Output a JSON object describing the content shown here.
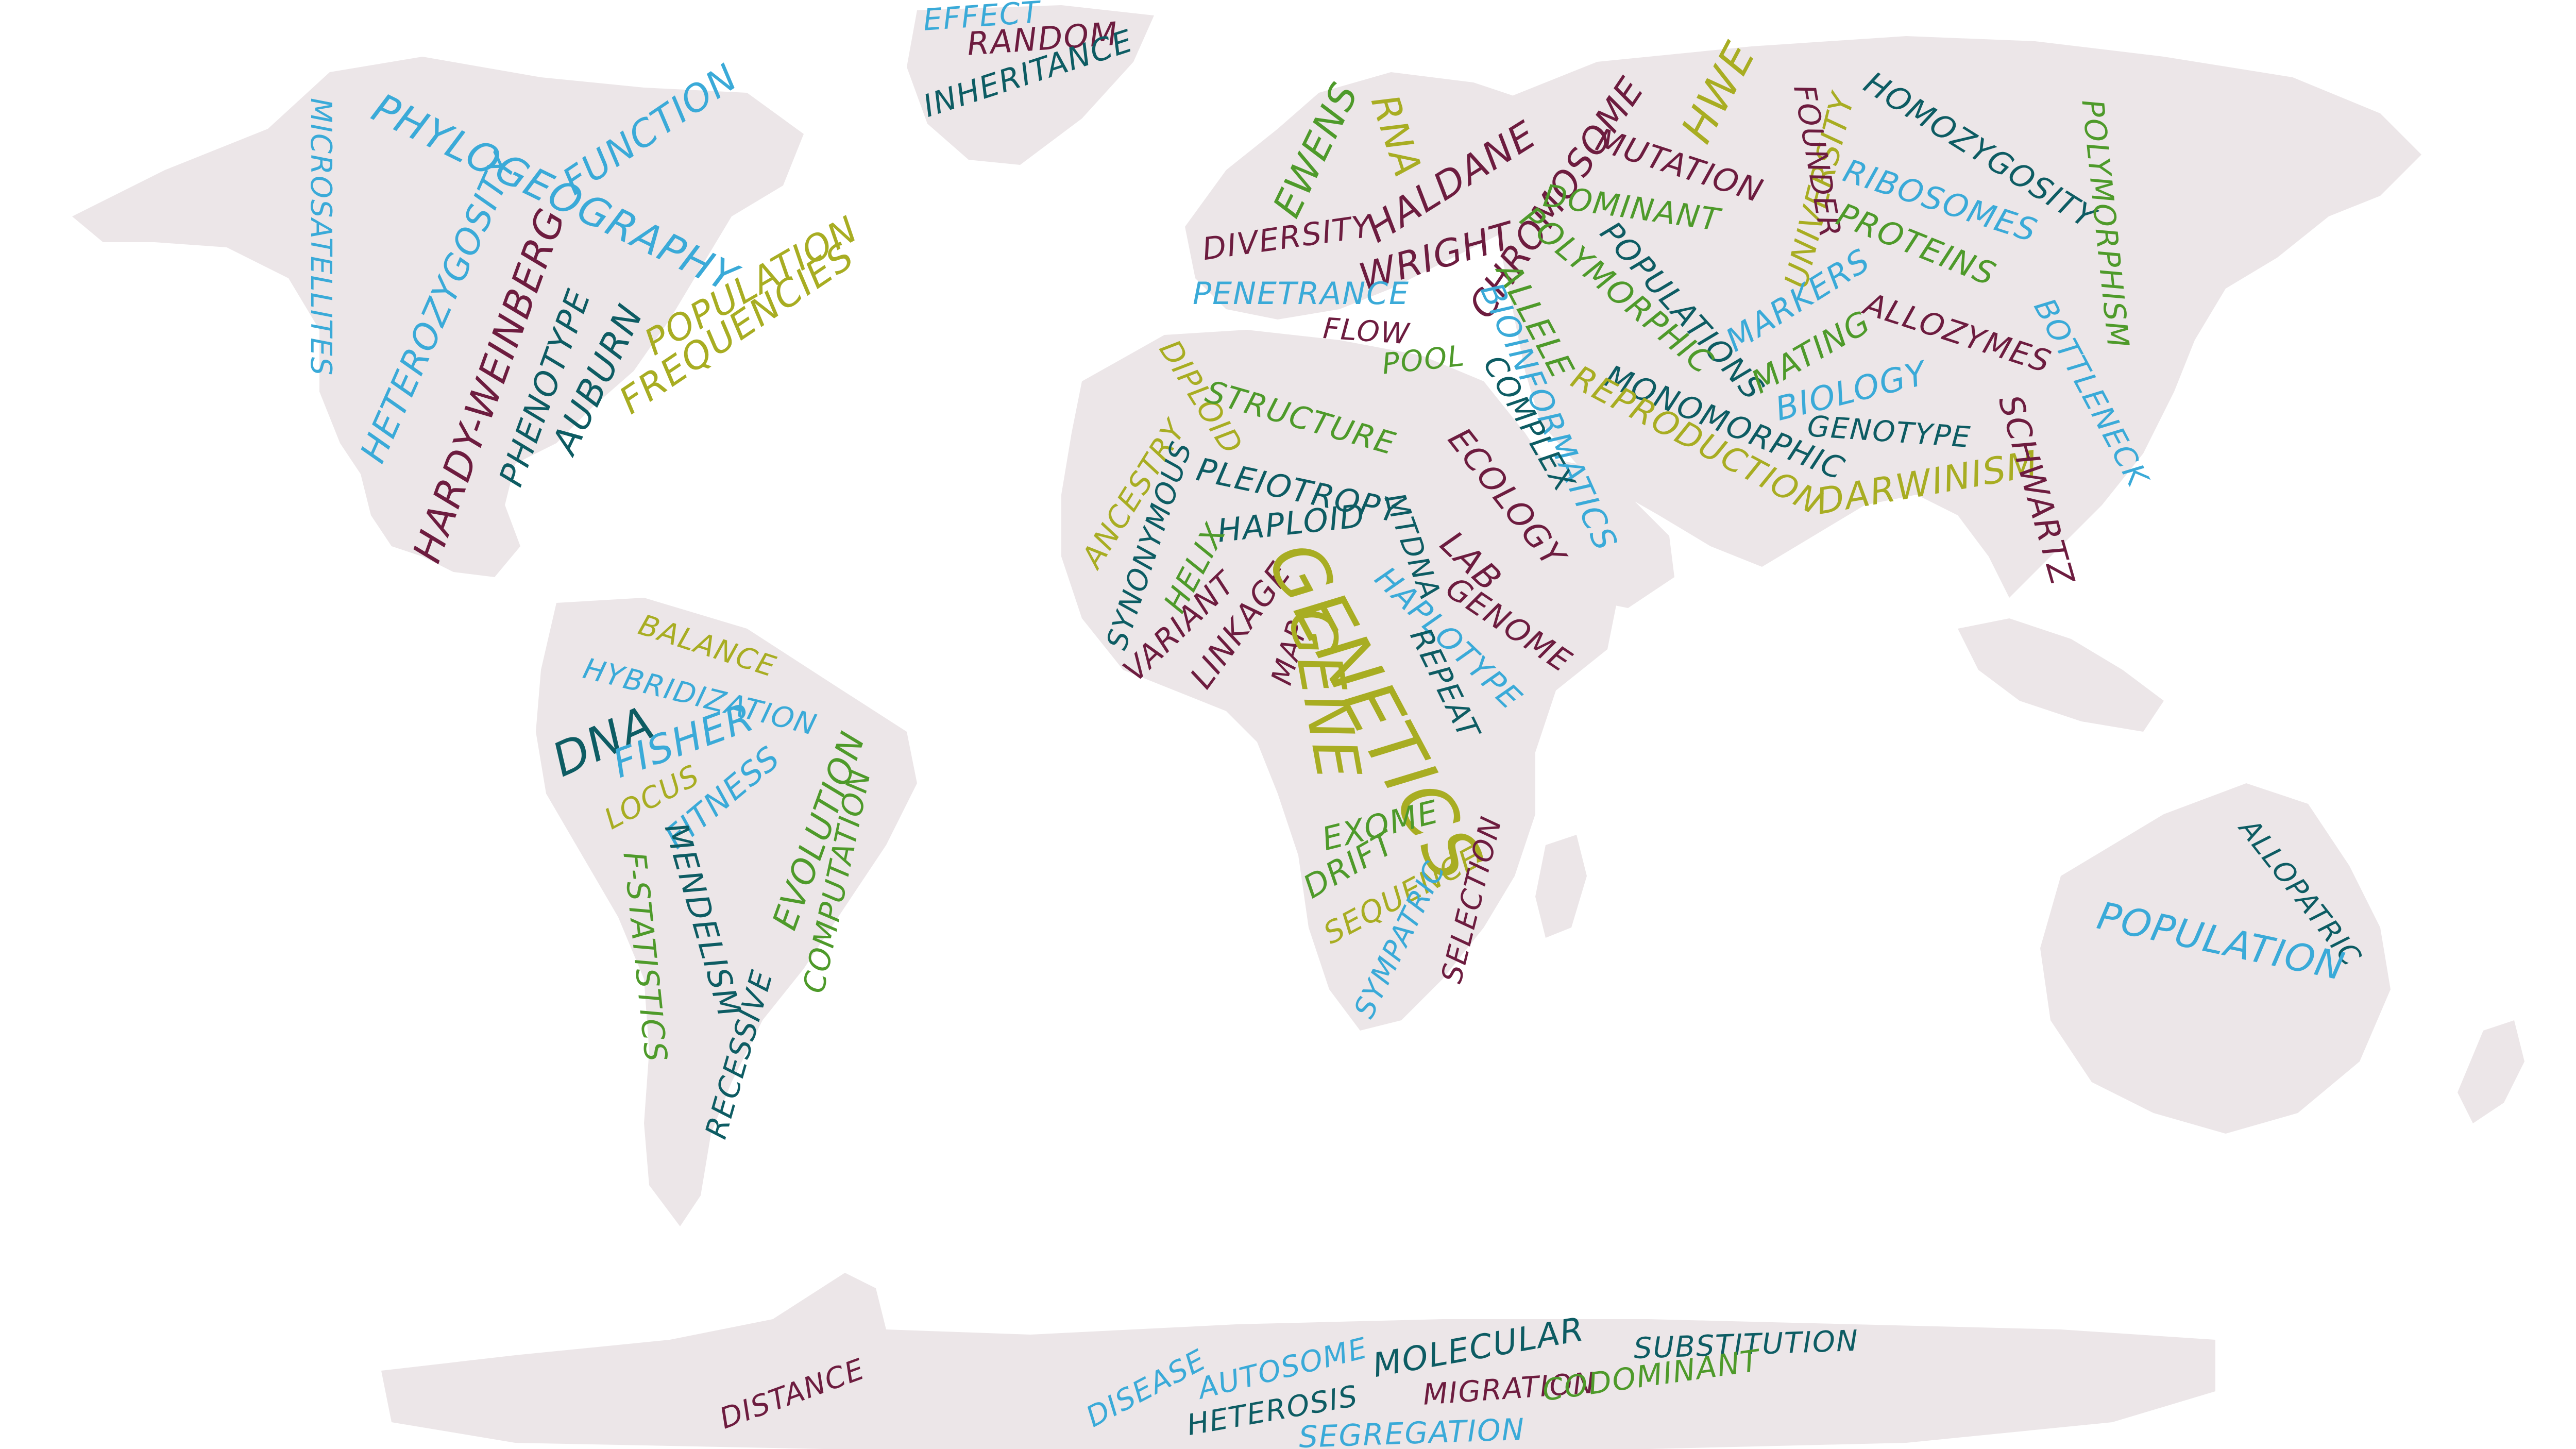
{
  "colors": {
    "teal": "#0d5c63",
    "sky": "#3aaad8",
    "olive": "#a8ad22",
    "maroon": "#6d1c3f",
    "green": "#4e9a2a",
    "land": "#ece6e8"
  },
  "words": {
    "effect": "EFFECT",
    "random": "RANDOM",
    "inheritance": "INHERITANCE",
    "phylogeography": "PHYLOGEOGRAPHY",
    "function": "FUNCTION",
    "microsatellites": "MICROSATELLITES",
    "heterozygosity": "HETEROZYGOSITY",
    "hardy_weinberg": "HARDY-WEINBERG",
    "phenotype": "PHENOTYPE",
    "auburn": "AUBURN",
    "population_na": "POPULATION",
    "frequencies": "FREQUENCIES",
    "ewens": "EWENS",
    "rna": "RNA",
    "haldane": "HALDANE",
    "diversity": "DIVERSITY",
    "wright": "WRIGHT",
    "chromosome": "CHROMOSOME",
    "mutation": "MUTATION",
    "hwe": "HWE",
    "university": "UNIVERSITY",
    "founder": "FOUNDER",
    "homozygosity": "HOMOZYGOSITY",
    "polymorphism": "POLYMORPHISM",
    "ribosomes": "RIBOSOMES",
    "proteins": "PROTEINS",
    "bottleneck": "BOTTLENECK",
    "penetrance": "PENETRANCE",
    "flow": "FLOW",
    "pool": "POOL",
    "dominant": "DOMINANT",
    "populations": "POPULATIONS",
    "polymorphic": "POLYMORPHIC",
    "allele": "ALLELE",
    "bioinformatics": "BIOINFORMATICS",
    "markers": "MARKERS",
    "mating": "MATING",
    "allozymes": "ALLOZYMES",
    "biology": "BIOLOGY",
    "genotype": "GENOTYPE",
    "monomorphic": "MONOMORPHIC",
    "complex": "COMPLEX",
    "ecology": "ECOLOGY",
    "reproduction": "REPRODUCTION",
    "darwinism": "DARWINISM",
    "schwartz": "SCHWARTZ",
    "diploid": "DIPLOID",
    "structure": "STRUCTURE",
    "ancestry": "ANCESTRY",
    "synonymous": "SYNONYMOUS",
    "pleiotropy": "PLEIOTROPY",
    "haploid": "HAPLOID",
    "helix": "HELIX",
    "variant": "VARIANT",
    "linkage": "LINKAGE",
    "map": "MAP",
    "genetics": "GENETICS",
    "gene": "GENE",
    "lab": "LAB",
    "genome": "GENOME",
    "mtdna": "MTDNA",
    "haplotype": "HAPLOTYPE",
    "repeat": "REPEAT",
    "exome": "EXOME",
    "drift": "DRIFT",
    "sequence": "SEQUENCE",
    "sympatric": "SYMPATRIC",
    "selection": "SELECTION",
    "balance": "BALANCE",
    "hybridization": "HYBRIDIZATION",
    "dna": "DNA",
    "fisher": "FISHER",
    "locus": "LOCUS",
    "fitness": "FITNESS",
    "evolution": "EVOLUTION",
    "mendelism": "MENDELISM",
    "f_statistics": "F-STATISTICS",
    "computation": "COMPUTATION",
    "recessive": "RECESSIVE",
    "allopatric": "ALLOPATRIC",
    "population_au": "POPULATION",
    "distance": "DISTANCE",
    "disease": "DISEASE",
    "autosome": "AUTOSOME",
    "heterosis": "HETEROSIS",
    "molecular": "MOLECULAR",
    "migration": "MIGRATION",
    "substitution": "SUBSTITUTION",
    "segregation": "SEGREGATION",
    "codominant": "CODOMINANT"
  }
}
